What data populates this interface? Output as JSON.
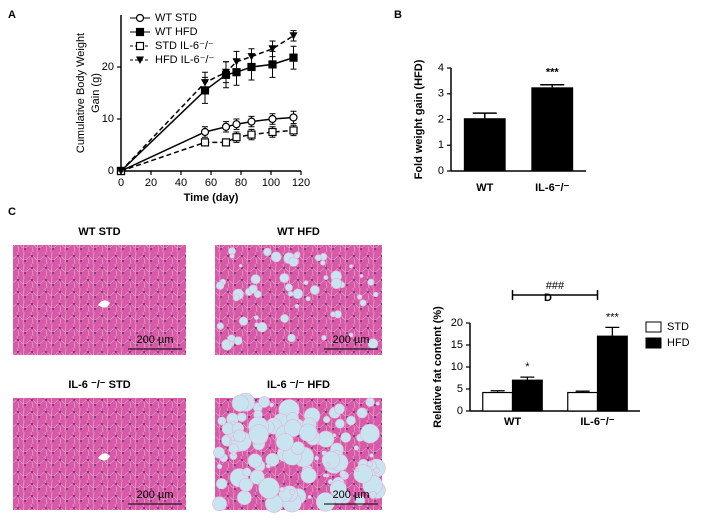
{
  "panel_labels": [
    "A",
    "B",
    "C",
    "D"
  ],
  "chart_data": [
    {
      "type": "line",
      "ylabel": [
        "Cumulative Body Weight",
        "Gain (g)"
      ],
      "xlabel": "Time (day)",
      "x": [
        0,
        56,
        70,
        77,
        87,
        101,
        115
      ],
      "xlim": [
        0,
        120
      ],
      "xticks": [
        0,
        20,
        40,
        60,
        80,
        100,
        120
      ],
      "ylim": [
        0,
        30
      ],
      "yticks": [
        0,
        10,
        20
      ],
      "series": [
        {
          "name": "WT STD",
          "color": "#000000",
          "marker": "circle-open",
          "line_style": "solid",
          "values": [
            0,
            7.5,
            8.5,
            9,
            9.5,
            10,
            10.3
          ],
          "errors": [
            0,
            1,
            1,
            1,
            1,
            1,
            1.2
          ]
        },
        {
          "name": "WT HFD",
          "color": "#000000",
          "marker": "square-filled",
          "line_style": "solid",
          "values": [
            0,
            15.5,
            18.5,
            19,
            20,
            20.5,
            21.8
          ],
          "errors": [
            0,
            2.5,
            2.5,
            2.5,
            2.5,
            2.5,
            2.2
          ]
        },
        {
          "name": "STD IL-6⁻/⁻",
          "color": "#000000",
          "marker": "square-open",
          "line_style": "dashed",
          "values": [
            0,
            5.5,
            5.5,
            6.5,
            7,
            7.5,
            7.8
          ],
          "errors": [
            0,
            0.6,
            0.6,
            1,
            1,
            1,
            1
          ]
        },
        {
          "name": "HFD IL-6⁻/⁻",
          "color": "#000000",
          "marker": "triangle-down-filled",
          "line_style": "dashed",
          "values": [
            0,
            17,
            19,
            21,
            22,
            23.5,
            26
          ],
          "errors": [
            0,
            2,
            2,
            2,
            1.5,
            1.5,
            1
          ]
        }
      ]
    },
    {
      "type": "bar",
      "ylabel": "Fold weight gain (HFD)",
      "categories": [
        "WT",
        "IL-6⁻/⁻"
      ],
      "values": [
        2.05,
        3.25
      ],
      "errors": [
        0.2,
        0.1
      ],
      "significance": [
        null,
        "***"
      ],
      "color": "#000000",
      "ylim": [
        0,
        4
      ],
      "yticks": [
        0,
        1,
        2,
        3,
        4
      ]
    },
    {
      "type": "grouped_bar",
      "ylabel": "Relative fat content (%)",
      "categories": [
        "WT",
        "IL-6⁻/⁻"
      ],
      "ylim": [
        0,
        20
      ],
      "yticks": [
        0,
        5,
        10,
        15,
        20
      ],
      "bracket": "###",
      "series": [
        {
          "name": "STD",
          "color": "#ffffff",
          "values": [
            4.2,
            4.2
          ],
          "errors": [
            0.4,
            0.3
          ],
          "significance": [
            null,
            null
          ]
        },
        {
          "name": "HFD",
          "color": "#000000",
          "values": [
            7,
            17
          ],
          "errors": [
            0.7,
            2
          ],
          "significance": [
            "*",
            "***"
          ]
        }
      ]
    }
  ],
  "images": [
    {
      "title": "WT STD",
      "scale_bar": "200 µm"
    },
    {
      "title": "WT HFD",
      "scale_bar": "200 µm"
    },
    {
      "title": "IL-6 ⁻/⁻ STD",
      "scale_bar": "200 µm"
    },
    {
      "title": "IL-6 ⁻/⁻ HFD",
      "scale_bar": "200 µm"
    }
  ]
}
